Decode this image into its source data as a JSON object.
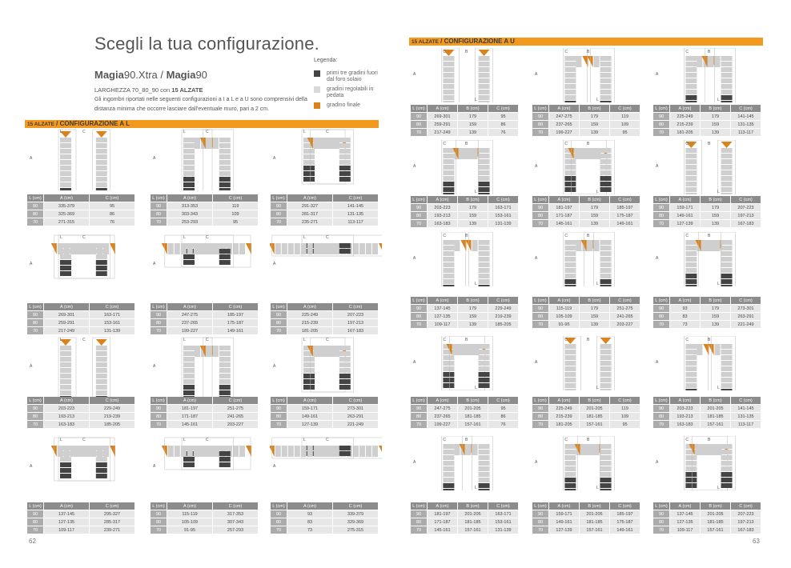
{
  "header": {
    "title": "Scegli la tua configurazione.",
    "product_a_bold": "Magia",
    "product_a_rest": "90.Xtra",
    "separator": " / ",
    "product_b_bold": "Magia",
    "product_b_rest": "90",
    "subline_pre": "LARGHEZZA 70_80_90 con ",
    "subline_bold": "15 ALZATE",
    "description": "Gli ingombri riportati nelle seguenti configurazioni a I a L e a U sono comprensivi della distanza minima che occorre lasciare dall'eventuale muro, pari a 2 cm."
  },
  "legend": {
    "title": "Legenda:",
    "items": [
      {
        "label": "primi tre gradini fuori dal foro solaio",
        "color": "#444444"
      },
      {
        "label": "gradini regolabili in pedata",
        "color": "#d9d9d9"
      },
      {
        "label": "gradino finale",
        "color": "#d9821e"
      }
    ]
  },
  "colors": {
    "accent": "#f39a1e",
    "header_cell": "#8c8c8c",
    "l_cell": "#ababab",
    "data_cell": "#e7e7e7",
    "step_dark": "#444444",
    "step_light": "#cfcfcf",
    "step_final": "#d9821e"
  },
  "left_page": {
    "section_prefix": "15 ALZATE",
    "section_title": " / CONFIGURAZIONE A L",
    "page_number": "62",
    "columns": [
      "L (cm)",
      "A (cm)",
      "C (cm)"
    ],
    "tables": [
      [
        [
          "90",
          "335-379",
          "95"
        ],
        [
          "80",
          "325-369",
          "86"
        ],
        [
          "70",
          "271-315",
          "76"
        ]
      ],
      [
        [
          "90",
          "313-353",
          "119"
        ],
        [
          "80",
          "303-343",
          "109"
        ],
        [
          "70",
          "253-293",
          "95"
        ]
      ],
      [
        [
          "90",
          "291-327",
          "141-145"
        ],
        [
          "80",
          "281-317",
          "131-135"
        ],
        [
          "70",
          "235-271",
          "113-117"
        ]
      ],
      [
        [
          "90",
          "269-301",
          "163-171"
        ],
        [
          "80",
          "259-291",
          "153-161"
        ],
        [
          "70",
          "217-249",
          "131-139"
        ]
      ],
      [
        [
          "90",
          "247-275",
          "185-197"
        ],
        [
          "80",
          "237-265",
          "175-187"
        ],
        [
          "70",
          "199-227",
          "149-161"
        ]
      ],
      [
        [
          "90",
          "225-249",
          "207-223"
        ],
        [
          "80",
          "215-239",
          "197-213"
        ],
        [
          "70",
          "181-205",
          "167-183"
        ]
      ],
      [
        [
          "90",
          "203-223",
          "229-249"
        ],
        [
          "80",
          "193-213",
          "219-239"
        ],
        [
          "70",
          "163-183",
          "185-205"
        ]
      ],
      [
        [
          "90",
          "181-197",
          "251-275"
        ],
        [
          "80",
          "171-187",
          "241-265"
        ],
        [
          "70",
          "145-161",
          "203-227"
        ]
      ],
      [
        [
          "90",
          "159-171",
          "273-301"
        ],
        [
          "80",
          "149-161",
          "263-291"
        ],
        [
          "70",
          "127-139",
          "221-249"
        ]
      ],
      [
        [
          "90",
          "137-145",
          "295-327"
        ],
        [
          "80",
          "127-135",
          "285-317"
        ],
        [
          "70",
          "109-117",
          "239-271"
        ]
      ],
      [
        [
          "90",
          "115-119",
          "317-353"
        ],
        [
          "80",
          "105-109",
          "307-343"
        ],
        [
          "70",
          "91-95",
          "257-293"
        ]
      ],
      [
        [
          "90",
          "93",
          "339-379"
        ],
        [
          "80",
          "83",
          "329-369"
        ],
        [
          "70",
          "73",
          "275-315"
        ]
      ]
    ],
    "diagram_labels": [
      "A",
      "C",
      "L"
    ]
  },
  "right_page": {
    "section_prefix": "15 ALZATE",
    "section_title": " / CONFIGURAZIONE A U",
    "page_number": "63",
    "columns": [
      "L (cm)",
      "A (cm)",
      "B (cm)",
      "C (cm)"
    ],
    "tables": [
      [
        [
          "90",
          "269-301",
          "179",
          "95"
        ],
        [
          "80",
          "259-291",
          "159",
          "86"
        ],
        [
          "70",
          "217-249",
          "139",
          "76"
        ]
      ],
      [
        [
          "90",
          "247-275",
          "179",
          "119"
        ],
        [
          "80",
          "237-265",
          "159",
          "109"
        ],
        [
          "70",
          "199-227",
          "139",
          "95"
        ]
      ],
      [
        [
          "90",
          "225-249",
          "179",
          "141-145"
        ],
        [
          "80",
          "215-239",
          "159",
          "131-135"
        ],
        [
          "70",
          "181-205",
          "139",
          "113-117"
        ]
      ],
      [
        [
          "90",
          "203-223",
          "179",
          "163-171"
        ],
        [
          "80",
          "193-213",
          "159",
          "153-161"
        ],
        [
          "70",
          "163-183",
          "139",
          "131-139"
        ]
      ],
      [
        [
          "90",
          "181-197",
          "179",
          "185-197"
        ],
        [
          "80",
          "171-187",
          "159",
          "175-187"
        ],
        [
          "70",
          "145-161",
          "139",
          "149-161"
        ]
      ],
      [
        [
          "90",
          "159-171",
          "179",
          "207-223"
        ],
        [
          "80",
          "149-161",
          "159",
          "197-213"
        ],
        [
          "70",
          "127-139",
          "139",
          "167-183"
        ]
      ],
      [
        [
          "90",
          "137-145",
          "179",
          "229-249"
        ],
        [
          "80",
          "127-135",
          "159",
          "219-239"
        ],
        [
          "70",
          "109-117",
          "139",
          "185-205"
        ]
      ],
      [
        [
          "90",
          "115-119",
          "179",
          "251-275"
        ],
        [
          "80",
          "105-109",
          "159",
          "241-265"
        ],
        [
          "70",
          "91-95",
          "139",
          "203-227"
        ]
      ],
      [
        [
          "90",
          "93",
          "179",
          "273-301"
        ],
        [
          "80",
          "83",
          "159",
          "263-291"
        ],
        [
          "70",
          "73",
          "139",
          "221-249"
        ]
      ],
      [
        [
          "90",
          "247-275",
          "201-205",
          "95"
        ],
        [
          "80",
          "237-265",
          "181-185",
          "86"
        ],
        [
          "70",
          "199-227",
          "157-161",
          "76"
        ]
      ],
      [
        [
          "90",
          "225-249",
          "201-205",
          "119"
        ],
        [
          "80",
          "215-239",
          "181-185",
          "109"
        ],
        [
          "70",
          "181-205",
          "157-161",
          "95"
        ]
      ],
      [
        [
          "90",
          "203-223",
          "201-205",
          "141-145"
        ],
        [
          "80",
          "193-213",
          "181-185",
          "131-135"
        ],
        [
          "70",
          "163-183",
          "157-161",
          "113-117"
        ]
      ],
      [
        [
          "90",
          "181-197",
          "201-205",
          "163-171"
        ],
        [
          "80",
          "171-187",
          "181-185",
          "153-161"
        ],
        [
          "70",
          "145-161",
          "157-161",
          "131-139"
        ]
      ],
      [
        [
          "90",
          "159-171",
          "201-205",
          "185-197"
        ],
        [
          "80",
          "149-161",
          "181-185",
          "175-187"
        ],
        [
          "70",
          "127-139",
          "157-161",
          "149-161"
        ]
      ],
      [
        [
          "90",
          "137-145",
          "201-205",
          "207-223"
        ],
        [
          "80",
          "127-135",
          "181-185",
          "197-213"
        ],
        [
          "70",
          "109-117",
          "157-161",
          "167-183"
        ]
      ]
    ],
    "diagram_labels": [
      "A",
      "B",
      "C",
      "L"
    ]
  }
}
